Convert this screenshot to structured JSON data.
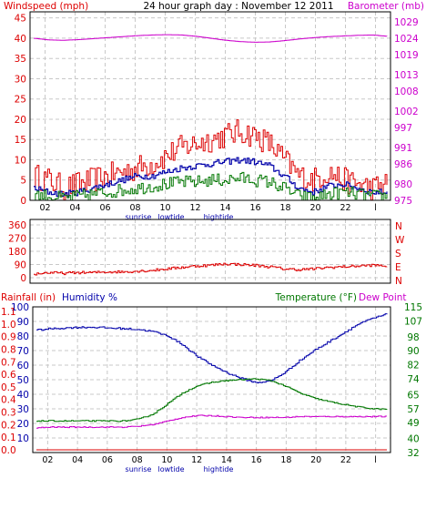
{
  "title": "24 hour graph day : November 12 2011",
  "colors": {
    "red": "#dd0000",
    "blue": "#0000aa",
    "green": "#007700",
    "magenta": "#cc00cc",
    "grid": "#c8c8c8",
    "frame": "#000000"
  },
  "chart_data": [
    {
      "type": "line",
      "left_label": "Windspeed (mph)",
      "right_label": "Barometer (mb)",
      "left_ticks": [
        0,
        5,
        10,
        15,
        20,
        25,
        30,
        35,
        40,
        45
      ],
      "right_ticks": [
        975,
        980,
        986,
        991,
        997,
        1002,
        1008,
        1013,
        1019,
        1024,
        1029
      ],
      "x_ticks": [
        "02",
        "04",
        "06",
        "08",
        "10",
        "12",
        "14",
        "16",
        "18",
        "20",
        "22",
        "l"
      ],
      "annotations": [
        "sunrise",
        "lowtide",
        "hightide"
      ],
      "x": [
        0,
        1,
        2,
        3,
        4,
        5,
        6,
        7,
        8,
        9,
        10,
        11,
        12,
        13,
        14,
        15,
        16,
        17,
        18,
        19,
        20,
        21,
        22,
        23,
        24
      ],
      "series": [
        {
          "role": "gust",
          "color_key": "red",
          "axis": "left",
          "values": [
            6,
            5,
            3,
            4,
            5,
            6,
            7,
            8,
            9,
            11,
            13,
            14,
            15,
            16,
            17,
            16,
            14,
            10,
            6,
            5,
            7,
            5,
            4,
            3,
            4
          ]
        },
        {
          "role": "average",
          "color_key": "blue",
          "axis": "left",
          "values": [
            3,
            2,
            1.5,
            2,
            3,
            4,
            5,
            6,
            6,
            7,
            8,
            8.5,
            9,
            9.5,
            10,
            9.5,
            8.5,
            6,
            3,
            2,
            3.5,
            4,
            3,
            2,
            2
          ]
        },
        {
          "role": "lull",
          "color_key": "green",
          "axis": "left",
          "values": [
            1.5,
            1,
            0.5,
            1,
            1.5,
            2,
            2.5,
            3,
            3.5,
            4,
            4.5,
            4.5,
            5,
            5,
            5.5,
            5,
            4.5,
            3,
            1,
            0.5,
            1.5,
            2,
            1.5,
            1,
            1
          ]
        },
        {
          "role": "barometer",
          "color_key": "magenta",
          "axis": "right",
          "values": [
            1024,
            1023.5,
            1023.4,
            1023.6,
            1023.9,
            1024.2,
            1024.5,
            1024.8,
            1025,
            1025.1,
            1025,
            1024.6,
            1024,
            1023.4,
            1023,
            1022.8,
            1022.9,
            1023.3,
            1023.8,
            1024.2,
            1024.5,
            1024.7,
            1024.9,
            1025,
            1024.6
          ]
        }
      ]
    },
    {
      "type": "line",
      "left_ticks": [
        0,
        90,
        180,
        270,
        360
      ],
      "right_ticks": [
        "N",
        "W",
        "S",
        "E",
        "N"
      ],
      "x_ticks": [
        "02",
        "04",
        "06",
        "08",
        "10",
        "12",
        "14",
        "16",
        "18",
        "20",
        "22",
        "l"
      ],
      "x": [
        0,
        1,
        2,
        3,
        4,
        5,
        6,
        7,
        8,
        9,
        10,
        11,
        12,
        13,
        14,
        15,
        16,
        17,
        18,
        19,
        20,
        21,
        22,
        23,
        24
      ],
      "series": [
        {
          "role": "wind_direction",
          "color_key": "red",
          "values": [
            25,
            35,
            30,
            35,
            35,
            40,
            40,
            45,
            50,
            60,
            70,
            80,
            85,
            95,
            90,
            85,
            75,
            60,
            55,
            60,
            70,
            75,
            80,
            85,
            80
          ]
        }
      ]
    },
    {
      "type": "line",
      "left_label_1": "Rainfall (in)",
      "left_label_2": "Humidity %",
      "right_label_1": "Temperature (°F)",
      "right_label_2": "Dew Point",
      "rain_ticks": [
        "0.0",
        "0.1",
        "0.2",
        "0.3",
        "0.4",
        "0.5",
        "0.6",
        "0.7",
        "0.8",
        "0.9",
        "1.0",
        "1.1"
      ],
      "humidity_ticks": [
        10,
        20,
        30,
        40,
        50,
        60,
        70,
        80,
        90,
        100
      ],
      "right_ticks": [
        32,
        40,
        49,
        57,
        65,
        74,
        82,
        90,
        98,
        107,
        115
      ],
      "x_ticks": [
        "02",
        "04",
        "06",
        "08",
        "10",
        "12",
        "14",
        "16",
        "18",
        "20",
        "22",
        "l"
      ],
      "annotations": [
        "sunrise",
        "lowtide",
        "hightide"
      ],
      "x": [
        0,
        1,
        2,
        3,
        4,
        5,
        6,
        7,
        8,
        9,
        10,
        11,
        12,
        13,
        14,
        15,
        16,
        17,
        18,
        19,
        20,
        21,
        22,
        23,
        24
      ],
      "series": [
        {
          "role": "humidity",
          "color_key": "blue",
          "axis": "humidity",
          "values": [
            84,
            85,
            85.5,
            86,
            86,
            85.5,
            85,
            84.5,
            83,
            80,
            74,
            66,
            60,
            55,
            51,
            48,
            49,
            55,
            63,
            70,
            76,
            82,
            88,
            92,
            95
          ]
        },
        {
          "role": "temperature",
          "color_key": "green",
          "axis": "temperature",
          "values": [
            50,
            50,
            50,
            50,
            50,
            50,
            50,
            51,
            54,
            60,
            66,
            70,
            72,
            73,
            73.5,
            74,
            73,
            70,
            66,
            63,
            61,
            59.5,
            58,
            57,
            56.5
          ]
        },
        {
          "role": "dew_point",
          "color_key": "magenta",
          "axis": "temperature",
          "values": [
            46,
            46.5,
            46.5,
            46.5,
            46.5,
            46.5,
            46.5,
            47,
            48,
            50,
            52,
            53,
            53,
            52.5,
            52,
            52,
            52,
            52,
            52.5,
            52.5,
            52.5,
            52.5,
            52.5,
            52.5,
            52.5
          ]
        },
        {
          "role": "rainfall",
          "color_key": "red",
          "axis": "rain",
          "values": [
            0,
            0,
            0,
            0,
            0,
            0,
            0,
            0,
            0,
            0,
            0,
            0,
            0,
            0,
            0,
            0,
            0,
            0,
            0,
            0,
            0,
            0,
            0,
            0,
            0
          ]
        }
      ]
    }
  ]
}
